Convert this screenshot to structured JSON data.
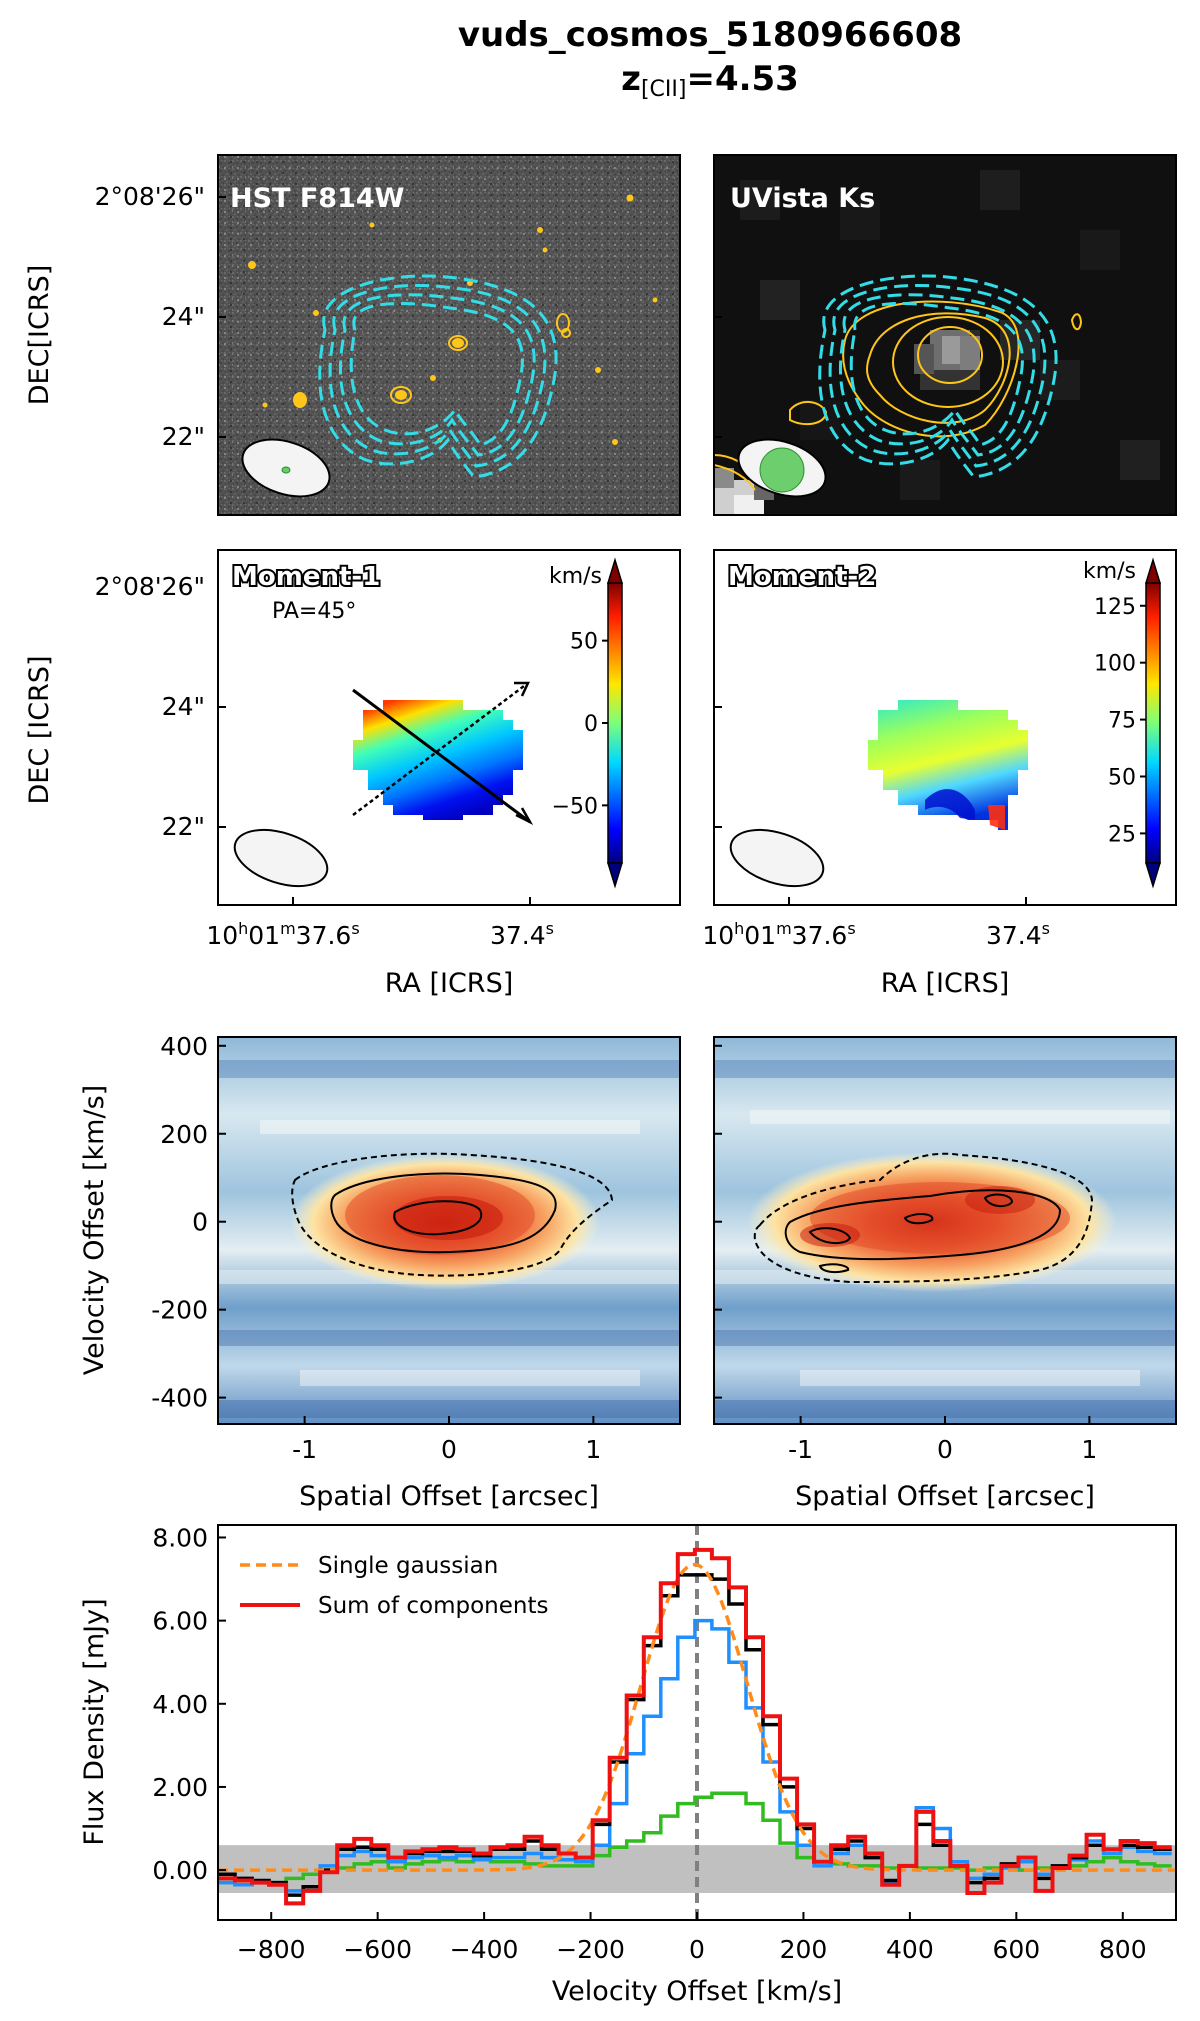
{
  "title": {
    "object_name": "vuds_cosmos_5180966608",
    "z_prefix": "z",
    "z_subscript": "[CII]",
    "z_value": "=4.53"
  },
  "colors": {
    "cyan_contour": "#33dde8",
    "yellow_contour": "#ffc61a",
    "beam_green": "#66cc66",
    "black_line": "#000000",
    "blue_line": "#1f8fff",
    "green_line": "#33bb22",
    "red_line": "#ee1111",
    "orange_line": "#ff8c1a",
    "band_gray": "#c0c0c0"
  },
  "images": {
    "hst_label": "HST F814W",
    "uvista_label": "UVista Ks",
    "dec_axis_label": "DEC[ICRS]",
    "dec_ticks": [
      "2°08'26\"",
      "24\"",
      "22\""
    ]
  },
  "moments": {
    "moment1_label": "Moment-1",
    "pa_label": "PA=45°",
    "moment2_label": "Moment-2",
    "dec_axis_label": "DEC [ICRS]",
    "dec_ticks": [
      "2°08'26\"",
      "24\"",
      "22\""
    ],
    "ra_axis_label": "RA [ICRS]",
    "ra_tick_left": "10h01m37.6s",
    "ra_tick_right": "37.4s",
    "unit": "km/s"
  },
  "chart_data": [
    {
      "type": "heatmap",
      "title": "Moment-1 colorbar",
      "units": "km/s",
      "ticks": [
        50,
        0,
        -50
      ],
      "range": [
        -85,
        85
      ]
    },
    {
      "type": "heatmap",
      "title": "Moment-2 colorbar",
      "units": "km/s",
      "ticks": [
        125,
        100,
        75,
        50,
        25
      ],
      "range": [
        12,
        135
      ]
    },
    {
      "type": "heatmap",
      "title": "Position-velocity diagrams",
      "xlabel": "Spatial Offset [arcsec]",
      "ylabel": "Velocity Offset [km/s]",
      "xlim": [
        -1.6,
        1.6
      ],
      "ylim": [
        -460,
        420
      ],
      "xticks": [
        -1,
        0,
        1
      ],
      "yticks": [
        400,
        200,
        0,
        -200,
        -400
      ]
    },
    {
      "type": "line",
      "xlabel": "Velocity Offset [km/s]",
      "ylabel": "Flux Density [mJy]",
      "xlim": [
        -900,
        900
      ],
      "ylim": [
        -1.2,
        8.3
      ],
      "xticks": [
        -800,
        -600,
        -400,
        -200,
        0,
        200,
        400,
        600,
        800
      ],
      "yticks": [
        "8.00",
        "6.00",
        "4.00",
        "2.00",
        "0.00"
      ],
      "ytick_values": [
        8,
        6,
        4,
        2,
        0
      ],
      "noise_band": [
        -0.55,
        0.6
      ],
      "vline": 0,
      "legend": [
        "Single gaussian",
        "Sum of components"
      ],
      "legend_position": "top-left",
      "step_width": 32,
      "step_x_start": -900,
      "series": [
        {
          "name": "Sum of components",
          "color": "#ee1111",
          "values": [
            -0.2,
            -0.25,
            -0.3,
            -0.35,
            -0.8,
            -0.5,
            -0.05,
            0.6,
            0.75,
            0.6,
            0.3,
            0.45,
            0.5,
            0.55,
            0.5,
            0.4,
            0.55,
            0.6,
            0.8,
            0.6,
            0.4,
            0.3,
            1.2,
            2.7,
            4.2,
            5.6,
            6.9,
            7.6,
            7.7,
            7.5,
            6.8,
            5.6,
            3.7,
            2.2,
            1.1,
            0.2,
            0.6,
            0.8,
            0.4,
            -0.35,
            0.1,
            1.4,
            0.7,
            0.1,
            -0.55,
            -0.3,
            0.1,
            0.3,
            -0.5,
            0.05,
            0.35,
            0.85,
            0.5,
            0.7,
            0.65,
            0.55
          ]
        },
        {
          "name": "Total",
          "color": "#000000",
          "values": [
            -0.1,
            -0.2,
            -0.25,
            -0.3,
            -0.6,
            -0.4,
            0.0,
            0.5,
            0.55,
            0.5,
            0.3,
            0.4,
            0.45,
            0.45,
            0.45,
            0.35,
            0.5,
            0.5,
            0.7,
            0.5,
            0.4,
            0.3,
            1.1,
            2.6,
            4.1,
            5.4,
            6.6,
            7.1,
            7.1,
            7.0,
            6.4,
            5.3,
            3.5,
            2.0,
            1.0,
            0.2,
            0.5,
            0.7,
            0.3,
            -0.25,
            0.1,
            1.1,
            0.6,
            0.1,
            -0.3,
            -0.2,
            0.15,
            0.3,
            -0.2,
            0.1,
            0.3,
            0.6,
            0.5,
            0.6,
            0.55,
            0.5
          ]
        },
        {
          "name": "Blue component",
          "color": "#1f8fff",
          "values": [
            -0.3,
            -0.35,
            -0.3,
            -0.35,
            -0.5,
            -0.4,
            0.1,
            0.35,
            0.45,
            0.35,
            0.2,
            0.3,
            0.35,
            0.3,
            0.35,
            0.25,
            0.3,
            0.3,
            0.4,
            0.3,
            0.25,
            0.2,
            0.6,
            1.6,
            2.8,
            3.7,
            4.6,
            5.6,
            6.0,
            5.8,
            5.0,
            3.9,
            2.6,
            1.4,
            0.6,
            0.1,
            0.4,
            0.6,
            0.3,
            -0.3,
            0.1,
            1.5,
            1.0,
            0.2,
            -0.2,
            -0.1,
            0.05,
            0.2,
            -0.1,
            0.1,
            0.25,
            0.7,
            0.4,
            0.55,
            0.45,
            0.4
          ]
        },
        {
          "name": "Green component",
          "color": "#33bb22",
          "values": [
            -0.3,
            -0.35,
            -0.3,
            -0.3,
            -0.2,
            -0.1,
            0.0,
            0.05,
            0.15,
            0.2,
            0.05,
            0.15,
            0.2,
            0.25,
            0.2,
            0.3,
            0.2,
            0.2,
            0.15,
            0.1,
            0.1,
            0.1,
            0.35,
            0.55,
            0.7,
            0.9,
            1.3,
            1.6,
            1.75,
            1.85,
            1.85,
            1.6,
            1.2,
            0.65,
            0.3,
            0.2,
            0.15,
            0.1,
            0.1,
            0.05,
            0.1,
            0.05,
            0.05,
            0.05,
            0.0,
            0.05,
            0.1,
            0.0,
            0.05,
            0.1,
            0.1,
            0.2,
            0.3,
            0.2,
            0.15,
            0.1
          ]
        },
        {
          "name": "Single gaussian",
          "color": "#ff8c1a",
          "function": "gaussian",
          "amplitude": 7.35,
          "center": -5,
          "sigma": 100
        }
      ]
    }
  ]
}
